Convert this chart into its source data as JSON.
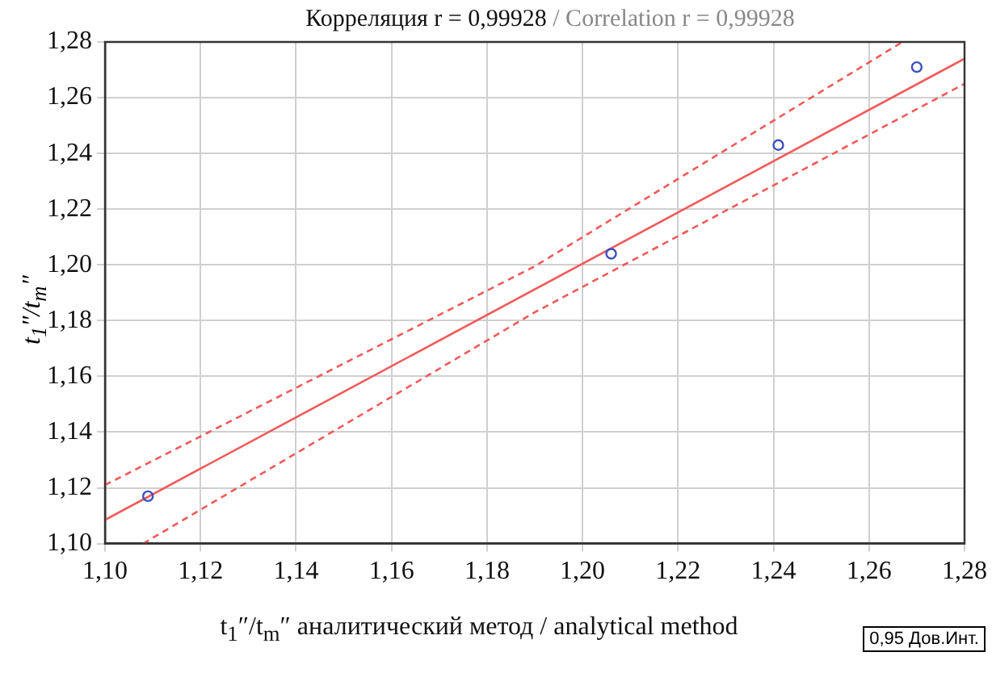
{
  "chart_data": {
    "type": "scatter",
    "title": "Корреляция r = 0,99928",
    "subtitle": "/ Correlation r = 0,99928",
    "xlabel": "t$_{1}$″/t$_{m}$″ аналитический метод / analytical method",
    "ylabel": "t$_{1}$″/t$_{m}$″",
    "annotations": [
      "0,95 Дов.Инт."
    ],
    "xlim": [
      1.1,
      1.28
    ],
    "ylim": [
      1.1,
      1.28
    ],
    "xticks": [
      {
        "value": 1.1,
        "label": "1,10"
      },
      {
        "value": 1.12,
        "label": "1,12"
      },
      {
        "value": 1.14,
        "label": "1,14"
      },
      {
        "value": 1.16,
        "label": "1,16"
      },
      {
        "value": 1.18,
        "label": "1,18"
      },
      {
        "value": 1.2,
        "label": "1,20"
      },
      {
        "value": 1.22,
        "label": "1,22"
      },
      {
        "value": 1.24,
        "label": "1,24"
      },
      {
        "value": 1.26,
        "label": "1,26"
      },
      {
        "value": 1.28,
        "label": "1,28"
      }
    ],
    "yticks": [
      {
        "value": 1.1,
        "label": "1,10"
      },
      {
        "value": 1.12,
        "label": "1,12"
      },
      {
        "value": 1.14,
        "label": "1,14"
      },
      {
        "value": 1.16,
        "label": "1,16"
      },
      {
        "value": 1.18,
        "label": "1,18"
      },
      {
        "value": 1.2,
        "label": "1,20"
      },
      {
        "value": 1.22,
        "label": "1,22"
      },
      {
        "value": 1.24,
        "label": "1,24"
      },
      {
        "value": 1.26,
        "label": "1,26"
      },
      {
        "value": 1.28,
        "label": "1,28"
      }
    ],
    "grid": true,
    "legend": false,
    "series": [
      {
        "type": "scatter",
        "color": "#3b4fbf",
        "marker": "circle",
        "x": [
          1.109,
          1.206,
          1.241,
          1.27
        ],
        "values": [
          1.117,
          1.204,
          1.243,
          1.271
        ]
      },
      {
        "type": "line",
        "color": "#f05a5a",
        "line_style": "solid",
        "marker": "none",
        "x": [
          1.1,
          1.28
        ],
        "values": [
          1.1085,
          1.274
        ]
      },
      {
        "type": "line",
        "color": "#f05a5a",
        "line_style": "dashed",
        "marker": "none",
        "x": [
          1.1,
          1.19,
          1.267
        ],
        "values": [
          1.121,
          1.1995,
          1.28
        ]
      },
      {
        "type": "line",
        "color": "#f05a5a",
        "line_style": "dashed",
        "marker": "none",
        "x": [
          1.108,
          1.19,
          1.28
        ],
        "values": [
          1.1,
          1.183,
          1.265
        ]
      }
    ]
  }
}
